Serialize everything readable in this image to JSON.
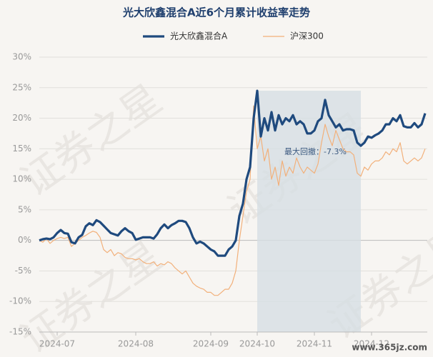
{
  "chart_data": {
    "type": "line",
    "title": "光大欣鑫混合A近6个月累计收益率走势",
    "categories": [
      null,
      null,
      null,
      null,
      null,
      "2024-07",
      null,
      null,
      null,
      null,
      null,
      null,
      null,
      null,
      null,
      null,
      null,
      null,
      null,
      null,
      null,
      null,
      null,
      null,
      null,
      null,
      null,
      "2024-08",
      null,
      null,
      null,
      null,
      null,
      null,
      null,
      null,
      null,
      null,
      null,
      null,
      null,
      null,
      null,
      null,
      null,
      null,
      null,
      null,
      "2024-09",
      null,
      null,
      null,
      null,
      null,
      null,
      null,
      null,
      null,
      null,
      null,
      null,
      "2024-10",
      null,
      null,
      null,
      null,
      null,
      null,
      null,
      null,
      null,
      null,
      null,
      null,
      null,
      null,
      null,
      "2024-11",
      null,
      null,
      null,
      null,
      null,
      null,
      null,
      null,
      null,
      null,
      null,
      null,
      null,
      null,
      null,
      "2024-12",
      null,
      null,
      null,
      null,
      null,
      null,
      null,
      null,
      null,
      null,
      null,
      null,
      null,
      null,
      null
    ],
    "series": [
      {
        "name": "光大欣鑫混合A",
        "color": "#1f4a7e",
        "width": 3.2,
        "values": [
          0,
          0.2,
          0.3,
          0.2,
          0.5,
          1.2,
          1.7,
          1.2,
          1.1,
          -0.3,
          -0.5,
          0.5,
          0.9,
          2.3,
          2.8,
          2.5,
          3.3,
          3,
          2.4,
          1.8,
          1.2,
          1,
          0.8,
          1.5,
          2,
          1.5,
          1.2,
          0.1,
          0.3,
          0.5,
          0.5,
          0.5,
          0.3,
          1,
          2,
          2.6,
          2,
          2.5,
          2.8,
          3.2,
          3.2,
          3,
          2,
          0.5,
          -0.5,
          -0.2,
          -0.5,
          -1,
          -1.5,
          -1.8,
          -2.5,
          -2.5,
          -2.5,
          -1.5,
          -1,
          0,
          4,
          6,
          10,
          12,
          20,
          24.5,
          17,
          20,
          18,
          21,
          18,
          20.5,
          19,
          20,
          19.5,
          20.5,
          19,
          19.5,
          19,
          17.5,
          17.5,
          18,
          19.5,
          20,
          23,
          20.5,
          19.5,
          18.5,
          19,
          18,
          18.2,
          18.2,
          18,
          16,
          15.5,
          16,
          17,
          16.8,
          17.2,
          17.5,
          18,
          19,
          19,
          20,
          19.5,
          20.5,
          18.7,
          18.5,
          18.5,
          19.2,
          18.5,
          19,
          20.8
        ]
      },
      {
        "name": "沪深300",
        "color": "#f2b07a",
        "width": 1.2,
        "values": [
          0,
          -0.3,
          0.3,
          -0.5,
          0,
          0.3,
          0.5,
          0.3,
          0.5,
          -1,
          -0.5,
          0,
          0.5,
          0.8,
          1.2,
          1.5,
          1.3,
          0.5,
          -1.5,
          -2,
          -1.5,
          -2.5,
          -2,
          -2.2,
          -2.8,
          -3,
          -3,
          -3.2,
          -3,
          -3.5,
          -3.8,
          -3.8,
          -3.5,
          -4.2,
          -3.8,
          -4,
          -3.5,
          -3.8,
          -4.5,
          -5,
          -5.5,
          -5,
          -6,
          -7,
          -7.5,
          -7.8,
          -8,
          -8.5,
          -8.5,
          -9,
          -9,
          -8.5,
          -8,
          -8,
          -7,
          -5,
          0,
          4,
          8,
          10,
          22,
          15,
          17,
          13,
          15,
          10,
          12,
          9,
          13,
          10.5,
          12,
          11,
          13.5,
          12,
          11,
          12,
          11.5,
          11,
          12.5,
          16,
          19,
          17,
          15.5,
          18,
          16.5,
          15,
          14.5,
          14.5,
          14,
          11,
          10.5,
          12,
          11.5,
          12.5,
          13,
          13,
          13.5,
          14.5,
          14,
          15,
          14.5,
          16,
          13,
          12.5,
          13,
          13.5,
          13,
          13.5,
          15
        ]
      }
    ],
    "ylim": [
      -15,
      30
    ],
    "yticks": [
      {
        "value": -15,
        "label": "-15%"
      },
      {
        "value": -10,
        "label": "-10%"
      },
      {
        "value": -5,
        "label": "-5%"
      },
      {
        "value": 0,
        "label": "0%"
      },
      {
        "value": 5,
        "label": "5%"
      },
      {
        "value": 10,
        "label": "10%"
      },
      {
        "value": 15,
        "label": "15%"
      },
      {
        "value": 20,
        "label": "20%"
      },
      {
        "value": 25,
        "label": "25%"
      },
      {
        "value": 30,
        "label": "30%"
      }
    ],
    "grid": true,
    "drawdown": {
      "start": 61,
      "end": 90,
      "label": "最大回撤：-7.3%",
      "color": "#d6dfe4"
    },
    "watermark": "证券之星",
    "site_mark": "www.365jz.com"
  }
}
